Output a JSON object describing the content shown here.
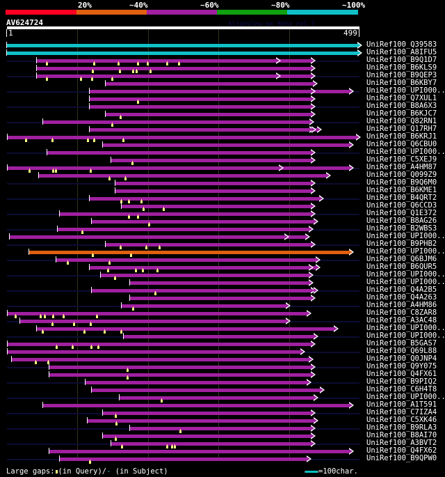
{
  "legend": {
    "labels": [
      "20%",
      "~40%",
      "~60%",
      "~80%",
      "~100%"
    ],
    "colors": [
      "#ff0022",
      "#e06010",
      "#a020a0",
      "#10a010",
      "#10c0c8"
    ]
  },
  "query": {
    "name": "AV624724",
    "start": "1",
    "end": "499",
    "length": 499
  },
  "credit": "AlignView.pm Beta rel.7",
  "grid_positions": [
    100,
    200,
    300,
    400
  ],
  "footer": {
    "gaps_prefix": "Large gaps:",
    "gaps_query": "(in Query)/",
    "gaps_subject_mark": "-",
    "gaps_subject": " (in Subject)",
    "scale_label": "=100char."
  },
  "hits": [
    {
      "name": "UniRef100_Q39583",
      "start": 1,
      "end": 499,
      "color": "cyan",
      "bg": false,
      "arrows": [
        499
      ],
      "markers": []
    },
    {
      "name": "UniRef100_A8IFU5",
      "start": 1,
      "end": 499,
      "color": "cyan",
      "bg": false,
      "arrows": [
        499
      ],
      "markers": []
    },
    {
      "name": "UniRef100_B9Q1D7",
      "start": 43,
      "end": 433,
      "color": "magenta",
      "bg": true,
      "arrows": [
        384,
        433
      ],
      "markers": [
        57,
        124,
        158,
        186,
        199,
        227,
        244
      ]
    },
    {
      "name": "UniRef100_B6KLS9",
      "start": 43,
      "end": 433,
      "color": "magenta",
      "bg": false,
      "arrows": [
        433
      ],
      "markers": [
        122,
        160,
        179,
        184,
        203
      ]
    },
    {
      "name": "UniRef100_B9QEP3",
      "start": 43,
      "end": 433,
      "color": "magenta",
      "bg": true,
      "arrows": [
        384,
        433
      ],
      "markers": [
        57,
        105,
        121,
        149
      ]
    },
    {
      "name": "UniRef100_B6KBY7",
      "start": 140,
      "end": 436,
      "color": "magenta",
      "bg": false,
      "arrows": [
        436
      ],
      "markers": []
    },
    {
      "name": "UniRef100_UPI000..",
      "start": 118,
      "end": 487,
      "color": "magenta",
      "bg": true,
      "arrows": [
        433,
        487
      ],
      "markers": []
    },
    {
      "name": "UniRef100_Q7XUL1",
      "start": 118,
      "end": 433,
      "color": "magenta",
      "bg": false,
      "arrows": [
        433
      ],
      "markers": [
        186
      ]
    },
    {
      "name": "UniRef100_B8A6X3",
      "start": 118,
      "end": 433,
      "color": "magenta",
      "bg": true,
      "arrows": [
        433
      ],
      "markers": []
    },
    {
      "name": "UniRef100_B6KJC7",
      "start": 140,
      "end": 433,
      "color": "magenta",
      "bg": false,
      "arrows": [
        433
      ],
      "markers": [
        161
      ]
    },
    {
      "name": "UniRef100_Q82RN1",
      "start": 52,
      "end": 431,
      "color": "magenta",
      "bg": true,
      "arrows": [
        431
      ],
      "markers": [
        149
      ]
    },
    {
      "name": "UniRef100_Q17RH7",
      "start": 118,
      "end": 442,
      "color": "magenta",
      "bg": false,
      "arrows": [
        431,
        434,
        442
      ],
      "markers": []
    },
    {
      "name": "UniRef100_B6KRJ1",
      "start": 2,
      "end": 497,
      "color": "magenta",
      "bg": true,
      "arrows": [
        497
      ],
      "markers": [
        28,
        65,
        115,
        124,
        165
      ]
    },
    {
      "name": "UniRef100_Q6CBU0",
      "start": 137,
      "end": 487,
      "color": "magenta",
      "bg": false,
      "arrows": [
        487
      ],
      "markers": []
    },
    {
      "name": "UniRef100_UPI000..",
      "start": 58,
      "end": 433,
      "color": "magenta",
      "bg": true,
      "arrows": [
        433
      ],
      "markers": []
    },
    {
      "name": "UniRef100_C5XEJ9",
      "start": 148,
      "end": 433,
      "color": "magenta",
      "bg": false,
      "arrows": [
        433
      ],
      "markers": [
        178
      ]
    },
    {
      "name": "UniRef100_A4HM87",
      "start": 2,
      "end": 487,
      "color": "magenta",
      "bg": true,
      "arrows": [
        388,
        487
      ],
      "markers": [
        32,
        66,
        70,
        119
      ]
    },
    {
      "name": "UniRef100_Q099Z9",
      "start": 46,
      "end": 455,
      "color": "magenta",
      "bg": false,
      "arrows": [
        455
      ],
      "markers": [
        145,
        168
      ]
    },
    {
      "name": "UniRef100_B9Q6M0",
      "start": 154,
      "end": 433,
      "color": "magenta",
      "bg": true,
      "arrows": [
        433
      ],
      "markers": []
    },
    {
      "name": "UniRef100_B6KME1",
      "start": 154,
      "end": 433,
      "color": "magenta",
      "bg": false,
      "arrows": [
        433
      ],
      "markers": []
    },
    {
      "name": "UniRef100_B4QRT2",
      "start": 118,
      "end": 445,
      "color": "magenta",
      "bg": true,
      "arrows": [
        445
      ],
      "markers": [
        162,
        173,
        191
      ]
    },
    {
      "name": "UniRef100_Q6CCD3",
      "start": 163,
      "end": 433,
      "color": "magenta",
      "bg": false,
      "arrows": [
        433
      ],
      "markers": [
        194,
        222
      ]
    },
    {
      "name": "UniRef100_Q1E372",
      "start": 76,
      "end": 433,
      "color": "magenta",
      "bg": true,
      "arrows": [
        433
      ],
      "markers": [
        173,
        186
      ]
    },
    {
      "name": "UniRef100_B8AG26",
      "start": 121,
      "end": 437,
      "color": "magenta",
      "bg": false,
      "arrows": [
        437
      ],
      "markers": [
        201
      ]
    },
    {
      "name": "UniRef100_B2WBS3",
      "start": 73,
      "end": 430,
      "color": "magenta",
      "bg": true,
      "arrows": [
        430
      ],
      "markers": [
        107
      ]
    },
    {
      "name": "UniRef100_UPI000..",
      "start": 5,
      "end": 425,
      "color": "magenta",
      "bg": false,
      "arrows": [
        396,
        425
      ],
      "markers": []
    },
    {
      "name": "UniRef100_B9PHB2",
      "start": 140,
      "end": 433,
      "color": "magenta",
      "bg": true,
      "arrows": [
        433
      ],
      "markers": [
        161,
        197,
        216
      ]
    },
    {
      "name": "UniRef100_UPI000..",
      "start": 32,
      "end": 487,
      "color": "orange",
      "bg": false,
      "arrows": [
        487
      ],
      "markers": [
        122,
        176
      ]
    },
    {
      "name": "UniRef100_Q6BJM6",
      "start": 71,
      "end": 440,
      "color": "magenta",
      "bg": true,
      "arrows": [
        440
      ],
      "markers": [
        86,
        145
      ]
    },
    {
      "name": "UniRef100_B6QUR5",
      "start": 118,
      "end": 440,
      "color": "magenta",
      "bg": false,
      "arrows": [
        430,
        440
      ],
      "markers": [
        143,
        183,
        193,
        213
      ]
    },
    {
      "name": "UniRef100_UPI000..",
      "start": 134,
      "end": 430,
      "color": "magenta",
      "bg": true,
      "arrows": [
        430
      ],
      "markers": [
        153
      ]
    },
    {
      "name": "UniRef100_UPI000..",
      "start": 175,
      "end": 430,
      "color": "magenta",
      "bg": false,
      "arrows": [
        430
      ],
      "markers": []
    },
    {
      "name": "UniRef100_Q4A2B5",
      "start": 121,
      "end": 437,
      "color": "magenta",
      "bg": true,
      "arrows": [
        433,
        437
      ],
      "markers": [
        210
      ]
    },
    {
      "name": "UniRef100_Q4A263",
      "start": 175,
      "end": 433,
      "color": "magenta",
      "bg": false,
      "arrows": [
        433
      ],
      "markers": []
    },
    {
      "name": "UniRef100_A4HM86",
      "start": 163,
      "end": 398,
      "color": "magenta",
      "bg": true,
      "arrows": [
        398
      ],
      "markers": [
        179
      ]
    },
    {
      "name": "UniRef100_C8ZAR8",
      "start": 2,
      "end": 427,
      "color": "magenta",
      "bg": false,
      "arrows": [
        427
      ],
      "markers": [
        13,
        48,
        54,
        66,
        81,
        128
      ]
    },
    {
      "name": "UniRef100_A3AC48",
      "start": 20,
      "end": 398,
      "color": "magenta",
      "bg": true,
      "arrows": [
        398
      ],
      "markers": [
        65,
        95,
        119
      ]
    },
    {
      "name": "UniRef100_UPI000..",
      "start": 43,
      "end": 466,
      "color": "magenta",
      "bg": false,
      "arrows": [
        466
      ],
      "markers": [
        51,
        110,
        139,
        162
      ]
    },
    {
      "name": "UniRef100_UPI000..",
      "start": 166,
      "end": 437,
      "color": "magenta",
      "bg": true,
      "arrows": [
        437
      ],
      "markers": []
    },
    {
      "name": "UniRef100_B5GAS7",
      "start": 2,
      "end": 433,
      "color": "magenta",
      "bg": false,
      "arrows": [
        433
      ],
      "markers": [
        71,
        93,
        120,
        130
      ]
    },
    {
      "name": "UniRef100_Q69L88",
      "start": 2,
      "end": 418,
      "color": "magenta",
      "bg": true,
      "arrows": [
        418
      ],
      "markers": []
    },
    {
      "name": "UniRef100_Q0JNP4",
      "start": 8,
      "end": 430,
      "color": "magenta",
      "bg": false,
      "arrows": [
        430
      ],
      "markers": [
        41,
        59
      ]
    },
    {
      "name": "UniRef100_Q9Y075",
      "start": 61,
      "end": 433,
      "color": "magenta",
      "bg": true,
      "arrows": [
        433
      ],
      "markers": [
        171
      ]
    },
    {
      "name": "UniRef100_Q4FX61",
      "start": 61,
      "end": 433,
      "color": "magenta",
      "bg": false,
      "arrows": [
        433
      ],
      "markers": [
        171
      ]
    },
    {
      "name": "UniRef100_B9PIQ2",
      "start": 112,
      "end": 427,
      "color": "magenta",
      "bg": true,
      "arrows": [
        427
      ],
      "markers": []
    },
    {
      "name": "UniRef100_C6H4T8",
      "start": 121,
      "end": 446,
      "color": "magenta",
      "bg": false,
      "arrows": [
        446
      ],
      "markers": []
    },
    {
      "name": "UniRef100_UPI000..",
      "start": 160,
      "end": 437,
      "color": "magenta",
      "bg": true,
      "arrows": [
        437
      ],
      "markers": [
        219
      ]
    },
    {
      "name": "UniRef100_A1T591",
      "start": 52,
      "end": 487,
      "color": "magenta",
      "bg": false,
      "arrows": [
        487
      ],
      "markers": []
    },
    {
      "name": "UniRef100_C7IZA4",
      "start": 137,
      "end": 433,
      "color": "magenta",
      "bg": true,
      "arrows": [
        433
      ],
      "markers": [
        154
      ]
    },
    {
      "name": "UniRef100_C5XK46",
      "start": 115,
      "end": 437,
      "color": "magenta",
      "bg": false,
      "arrows": [
        437
      ],
      "markers": [
        155
      ]
    },
    {
      "name": "UniRef100_B9RLA3",
      "start": 175,
      "end": 433,
      "color": "magenta",
      "bg": true,
      "arrows": [
        433
      ],
      "markers": [
        246
      ]
    },
    {
      "name": "UniRef100_B8AI70",
      "start": 137,
      "end": 433,
      "color": "magenta",
      "bg": false,
      "arrows": [
        433
      ],
      "markers": [
        154
      ]
    },
    {
      "name": "UniRef100_A3BVT2",
      "start": 148,
      "end": 433,
      "color": "magenta",
      "bg": true,
      "arrows": [
        433
      ],
      "markers": [
        163,
        227,
        234,
        238
      ]
    },
    {
      "name": "UniRef100_Q4FX62",
      "start": 61,
      "end": 487,
      "color": "magenta",
      "bg": false,
      "arrows": [
        487
      ],
      "markers": []
    },
    {
      "name": "UniRef100_B9QPW0",
      "start": 76,
      "end": 427,
      "color": "magenta",
      "bg": true,
      "arrows": [
        427
      ],
      "markers": [
        118
      ]
    }
  ]
}
